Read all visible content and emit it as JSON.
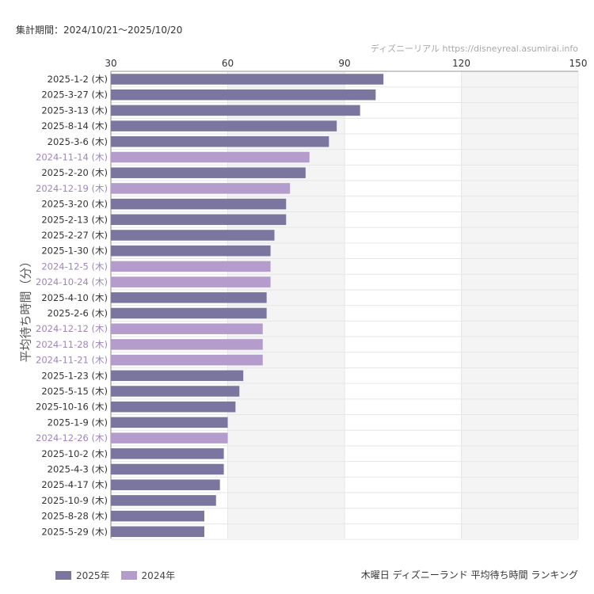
{
  "period_label": "集計期間：2024/10/21〜2025/10/20",
  "watermark": "ディズニーリアル https://disneyreal.asumirai.info",
  "footer_title": "木曜日 ディズニーランド 平均待ち時間 ランキング",
  "colors": {
    "2025": "#7a769f",
    "2024": "#b49ccd",
    "label_2025": "#333333",
    "label_2024": "#9f86c0",
    "band": "#f4f4f4",
    "grid": "#e6e6e6"
  },
  "chart_data": {
    "type": "bar",
    "orientation": "horizontal",
    "ylabel": "平均待ち時間（分）",
    "xlim": [
      30,
      150
    ],
    "xticks": [
      "30",
      "60",
      "90",
      "120",
      "150"
    ],
    "grid": true,
    "legend_position": "bottom-left",
    "series": [
      {
        "name": "2025年",
        "key": "2025"
      },
      {
        "name": "2024年",
        "key": "2024"
      }
    ],
    "categories": [
      "2025-1-2 (木)",
      "2025-3-27 (木)",
      "2025-3-13 (木)",
      "2025-8-14 (木)",
      "2025-3-6 (木)",
      "2024-11-14 (木)",
      "2025-2-20 (木)",
      "2024-12-19 (木)",
      "2025-3-20 (木)",
      "2025-2-13 (木)",
      "2025-2-27 (木)",
      "2025-1-30 (木)",
      "2024-12-5 (木)",
      "2024-10-24 (木)",
      "2025-4-10 (木)",
      "2025-2-6 (木)",
      "2024-12-12 (木)",
      "2024-11-28 (木)",
      "2024-11-21 (木)",
      "2025-1-23 (木)",
      "2025-5-15 (木)",
      "2025-10-16 (木)",
      "2025-1-9 (木)",
      "2024-12-26 (木)",
      "2025-10-2 (木)",
      "2025-4-3 (木)",
      "2025-4-17 (木)",
      "2025-10-9 (木)",
      "2025-8-28 (木)",
      "2025-5-29 (木)"
    ],
    "values": [
      100,
      98,
      94,
      88,
      86,
      81,
      80,
      76,
      75,
      75,
      72,
      71,
      71,
      71,
      70,
      70,
      69,
      69,
      69,
      64,
      63,
      62,
      60,
      60,
      59,
      59,
      58,
      57,
      54,
      54
    ],
    "year": [
      "2025",
      "2025",
      "2025",
      "2025",
      "2025",
      "2024",
      "2025",
      "2024",
      "2025",
      "2025",
      "2025",
      "2025",
      "2024",
      "2024",
      "2025",
      "2025",
      "2024",
      "2024",
      "2024",
      "2025",
      "2025",
      "2025",
      "2025",
      "2024",
      "2025",
      "2025",
      "2025",
      "2025",
      "2025",
      "2025"
    ]
  }
}
